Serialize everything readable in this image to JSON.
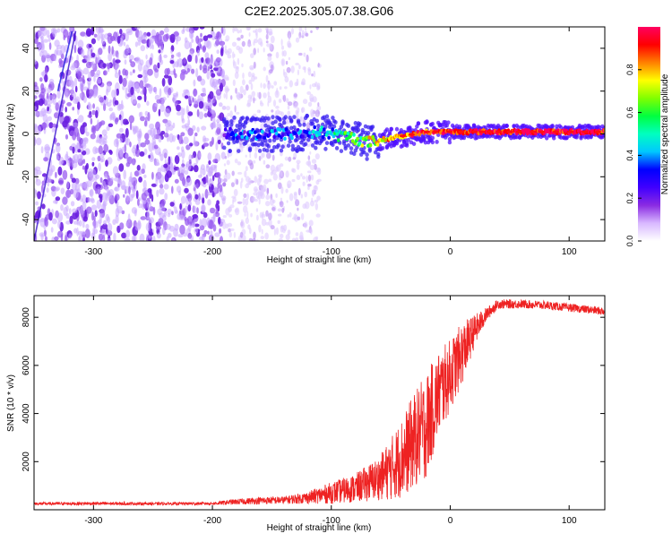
{
  "figure": {
    "title": "C2E2.2025.305.07.38.G06"
  },
  "chart_data": [
    {
      "type": "heatmap",
      "panel": "spectrogram",
      "xlabel": "Height of straight line (km)",
      "ylabel": "Frequency (Hz)",
      "xlim": [
        -350,
        130
      ],
      "ylim": [
        -50,
        50
      ],
      "xticks": [
        -300,
        -200,
        -100,
        0,
        100
      ],
      "yticks": [
        -40,
        -20,
        0,
        20,
        40
      ],
      "grid": false,
      "colorbar": {
        "label": "Normalized spectral amplitude",
        "range": [
          0,
          1
        ],
        "ticks": [
          "0.0",
          "0.2",
          "0.4",
          "0.6",
          "0.8"
        ],
        "tick_values": [
          0.0,
          0.2,
          0.4,
          0.6,
          0.8
        ],
        "colors": [
          "#ffffff",
          "#d8b8ff",
          "#8a2be2",
          "#4000ff",
          "#0000ff",
          "#00c8ff",
          "#00ffc0",
          "#00ff40",
          "#80ff00",
          "#ffff00",
          "#ff8000",
          "#ff0000",
          "#ff0060"
        ]
      },
      "features": {
        "noise_region_x": [
          -350,
          -190
        ],
        "faint_noise_x": [
          -190,
          -110
        ],
        "signal_trace": [
          {
            "x": -190,
            "f": 0,
            "amp": 0.3
          },
          {
            "x": -170,
            "f": 0,
            "amp": 0.32
          },
          {
            "x": -150,
            "f": 0,
            "amp": 0.35
          },
          {
            "x": -130,
            "f": 0,
            "amp": 0.35
          },
          {
            "x": -110,
            "f": 1,
            "amp": 0.4
          },
          {
            "x": -100,
            "f": 0,
            "amp": 0.45
          },
          {
            "x": -90,
            "f": -1,
            "amp": 0.55
          },
          {
            "x": -80,
            "f": -2,
            "amp": 0.6
          },
          {
            "x": -70,
            "f": -4,
            "amp": 0.7
          },
          {
            "x": -60,
            "f": -3,
            "amp": 0.75
          },
          {
            "x": -50,
            "f": -2,
            "amp": 0.8
          },
          {
            "x": -40,
            "f": -1,
            "amp": 0.85
          },
          {
            "x": -30,
            "f": 0,
            "amp": 0.9
          },
          {
            "x": -20,
            "f": 1,
            "amp": 0.9
          },
          {
            "x": 0,
            "f": 1,
            "amp": 0.92
          },
          {
            "x": 20,
            "f": 1,
            "amp": 0.95
          },
          {
            "x": 60,
            "f": 1,
            "amp": 0.95
          },
          {
            "x": 100,
            "f": 1,
            "amp": 0.97
          },
          {
            "x": 130,
            "f": 1,
            "amp": 0.97
          }
        ]
      }
    },
    {
      "type": "line",
      "panel": "snr",
      "xlabel": "Height of straight line (km)",
      "ylabel": "SNR (10 * v/v)",
      "xlim": [
        -350,
        130
      ],
      "ylim": [
        0,
        8900
      ],
      "xticks": [
        -300,
        -200,
        -100,
        0,
        100
      ],
      "yticks": [
        2000,
        4000,
        6000,
        8000
      ],
      "grid": false,
      "series": [
        {
          "name": "SNR",
          "color": "#ee2222",
          "envelope": [
            {
              "x": -350,
              "mean": 250,
              "noise": 60
            },
            {
              "x": -300,
              "mean": 260,
              "noise": 70
            },
            {
              "x": -250,
              "mean": 250,
              "noise": 60
            },
            {
              "x": -200,
              "mean": 260,
              "noise": 60
            },
            {
              "x": -180,
              "mean": 330,
              "noise": 120
            },
            {
              "x": -160,
              "mean": 380,
              "noise": 150
            },
            {
              "x": -140,
              "mean": 400,
              "noise": 160
            },
            {
              "x": -120,
              "mean": 500,
              "noise": 250
            },
            {
              "x": -100,
              "mean": 700,
              "noise": 450
            },
            {
              "x": -80,
              "mean": 900,
              "noise": 600
            },
            {
              "x": -60,
              "mean": 1300,
              "noise": 900
            },
            {
              "x": -50,
              "mean": 1700,
              "noise": 1300
            },
            {
              "x": -40,
              "mean": 2200,
              "noise": 1700
            },
            {
              "x": -30,
              "mean": 2900,
              "noise": 2000
            },
            {
              "x": -20,
              "mean": 3500,
              "noise": 2200
            },
            {
              "x": -10,
              "mean": 4800,
              "noise": 1800
            },
            {
              "x": 0,
              "mean": 5600,
              "noise": 1500
            },
            {
              "x": 10,
              "mean": 6500,
              "noise": 1300
            },
            {
              "x": 20,
              "mean": 7400,
              "noise": 700
            },
            {
              "x": 30,
              "mean": 8100,
              "noise": 300
            },
            {
              "x": 40,
              "mean": 8550,
              "noise": 200
            },
            {
              "x": 60,
              "mean": 8550,
              "noise": 180
            },
            {
              "x": 80,
              "mean": 8500,
              "noise": 180
            },
            {
              "x": 100,
              "mean": 8400,
              "noise": 170
            },
            {
              "x": 130,
              "mean": 8250,
              "noise": 170
            }
          ]
        }
      ]
    }
  ]
}
